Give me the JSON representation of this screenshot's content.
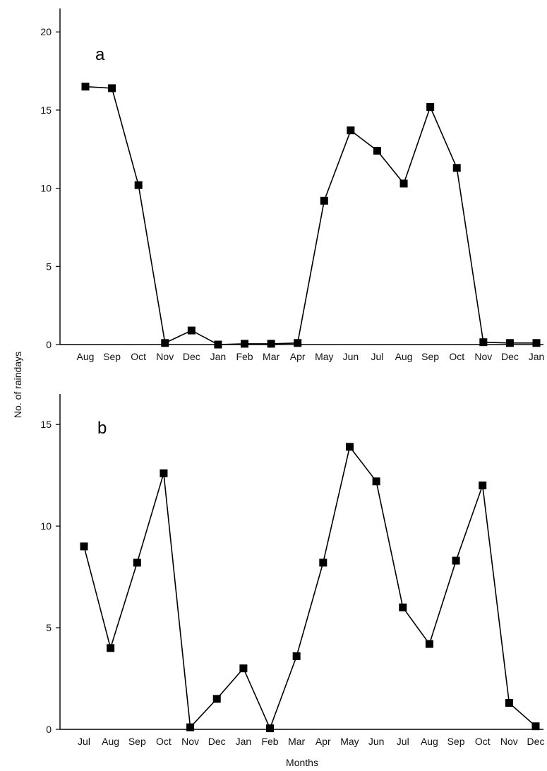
{
  "figure": {
    "ylabel": "No. of raindays",
    "xlabel": "Months"
  },
  "chart_data": [
    {
      "type": "line",
      "panel_label": "a",
      "categories": [
        "Aug",
        "Sep",
        "Oct",
        "Nov",
        "Dec",
        "Jan",
        "Feb",
        "Mar",
        "Apr",
        "May",
        "Jun",
        "Jul",
        "Aug",
        "Sep",
        "Oct",
        "Nov",
        "Dec",
        "Jan"
      ],
      "values": [
        16.5,
        16.4,
        10.2,
        0.1,
        0.9,
        0,
        0.05,
        0.05,
        0.1,
        9.2,
        13.7,
        12.4,
        10.3,
        15.2,
        11.3,
        0.15,
        0.1,
        0.1
      ],
      "yticks": [
        0,
        5,
        10,
        15,
        20
      ],
      "ylim": [
        0,
        21.5
      ],
      "grid": false,
      "marker": "square"
    },
    {
      "type": "line",
      "panel_label": "b",
      "categories": [
        "Jul",
        "Aug",
        "Sep",
        "Oct",
        "Nov",
        "Dec",
        "Jan",
        "Feb",
        "Mar",
        "Apr",
        "May",
        "Jun",
        "Jul",
        "Aug",
        "Sep",
        "Oct",
        "Nov",
        "Dec"
      ],
      "values": [
        9.0,
        4.0,
        8.2,
        12.6,
        0.1,
        1.5,
        3.0,
        0.05,
        3.6,
        8.2,
        13.9,
        12.2,
        6.0,
        4.2,
        8.3,
        12.0,
        1.3,
        0.15
      ],
      "yticks": [
        0,
        5,
        10,
        15
      ],
      "ylim": [
        0,
        16.5
      ],
      "grid": false,
      "marker": "square"
    }
  ]
}
